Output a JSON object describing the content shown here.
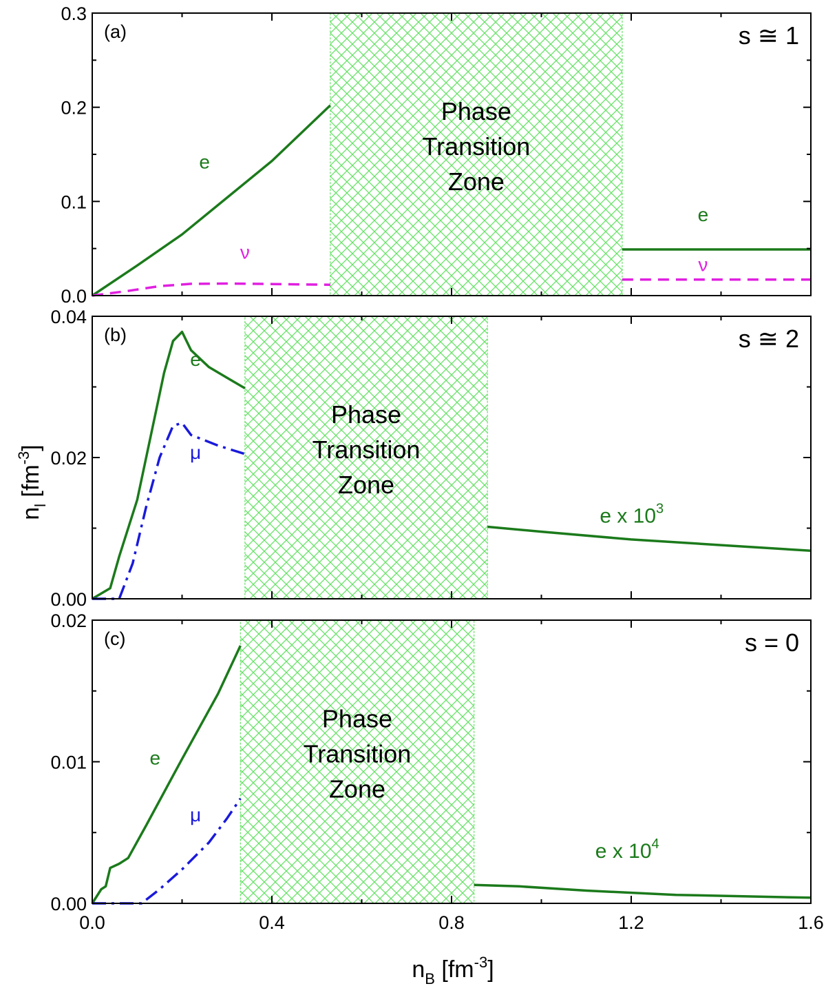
{
  "chart_data": [
    {
      "type": "line",
      "panel_label": "(a)",
      "state_label": "s ≅ 1",
      "xlim": [
        0.0,
        1.6
      ],
      "ylim": [
        0.0,
        0.3
      ],
      "yticks": [
        "0.0",
        "0.1",
        "0.2",
        "0.3"
      ],
      "phase_zone": {
        "x_range": [
          0.53,
          1.18
        ],
        "label": [
          "Phase",
          "Transition",
          "Zone"
        ]
      },
      "series": [
        {
          "name": "e",
          "style": "solid",
          "color": "#1b7a1b",
          "segments": [
            [
              [
                0.0,
                0.0
              ],
              [
                0.1,
                0.032
              ],
              [
                0.2,
                0.065
              ],
              [
                0.3,
                0.104
              ],
              [
                0.4,
                0.143
              ],
              [
                0.53,
                0.202
              ]
            ],
            [
              [
                1.18,
                0.049
              ],
              [
                1.6,
                0.049
              ]
            ]
          ]
        },
        {
          "name": "ν",
          "style": "dashed",
          "color": "#e020e0",
          "segments": [
            [
              [
                0.0,
                0.0
              ],
              [
                0.08,
                0.005
              ],
              [
                0.15,
                0.01
              ],
              [
                0.22,
                0.0125
              ],
              [
                0.3,
                0.0128
              ],
              [
                0.4,
                0.0123
              ],
              [
                0.53,
                0.0115
              ]
            ],
            [
              [
                1.18,
                0.017
              ],
              [
                1.6,
                0.017
              ]
            ]
          ]
        }
      ],
      "annotations": [
        {
          "text": "e",
          "x": 0.25,
          "y": 0.135,
          "color": "#1b7a1b"
        },
        {
          "text": "ν",
          "x": 0.34,
          "y": 0.039,
          "color": "#e020e0"
        },
        {
          "text": "e",
          "x": 1.36,
          "y": 0.079,
          "color": "#1b7a1b"
        },
        {
          "text": "ν",
          "x": 1.36,
          "y": 0.026,
          "color": "#e020e0"
        }
      ]
    },
    {
      "type": "line",
      "panel_label": "(b)",
      "state_label": "s ≅ 2",
      "xlim": [
        0.0,
        1.6
      ],
      "ylim": [
        0.0,
        0.04
      ],
      "yticks": [
        "0.00",
        "0.02",
        "0.04"
      ],
      "phase_zone": {
        "x_range": [
          0.34,
          0.88
        ],
        "label": [
          "Phase",
          "Transition",
          "Zone"
        ]
      },
      "series": [
        {
          "name": "e",
          "style": "solid",
          "color": "#1b7a1b",
          "segments": [
            [
              [
                0.0,
                0.0
              ],
              [
                0.04,
                0.0015
              ],
              [
                0.06,
                0.006
              ],
              [
                0.1,
                0.014
              ],
              [
                0.14,
                0.026
              ],
              [
                0.16,
                0.032
              ],
              [
                0.18,
                0.0365
              ],
              [
                0.2,
                0.0378
              ],
              [
                0.22,
                0.0352
              ],
              [
                0.26,
                0.0328
              ],
              [
                0.3,
                0.0313
              ],
              [
                0.34,
                0.0298
              ]
            ],
            [
              [
                0.88,
                0.0102
              ],
              [
                1.0,
                0.0095
              ],
              [
                1.2,
                0.0084
              ],
              [
                1.4,
                0.0076
              ],
              [
                1.6,
                0.0068
              ]
            ]
          ]
        },
        {
          "name": "μ",
          "style": "dashdot",
          "color": "#1a1adb",
          "segments": [
            [
              [
                0.0,
                0.0
              ],
              [
                0.06,
                0.0
              ],
              [
                0.09,
                0.005
              ],
              [
                0.12,
                0.013
              ],
              [
                0.15,
                0.02
              ],
              [
                0.18,
                0.0245
              ],
              [
                0.2,
                0.0249
              ],
              [
                0.22,
                0.0232
              ],
              [
                0.28,
                0.0217
              ],
              [
                0.34,
                0.0205
              ]
            ]
          ]
        }
      ],
      "annotations": [
        {
          "text": "e",
          "x": 0.23,
          "y": 0.033,
          "color": "#1b7a1b"
        },
        {
          "text": "μ",
          "x": 0.23,
          "y": 0.0198,
          "color": "#1a1adb"
        }
      ],
      "superscript_annotations": [
        {
          "base": "e x 10",
          "sup": "3",
          "x": 1.13,
          "y": 0.0108,
          "color": "#1b7a1b"
        }
      ]
    },
    {
      "type": "line",
      "panel_label": "(c)",
      "state_label": "s = 0",
      "xlim": [
        0.0,
        1.6
      ],
      "ylim": [
        0.0,
        0.02
      ],
      "yticks": [
        "0.00",
        "0.01",
        "0.02"
      ],
      "xticks": [
        "0.0",
        "0.4",
        "0.8",
        "1.2",
        "1.6"
      ],
      "phase_zone": {
        "x_range": [
          0.33,
          0.85
        ],
        "label": [
          "Phase",
          "Transition",
          "Zone"
        ]
      },
      "series": [
        {
          "name": "e",
          "style": "solid",
          "color": "#1b7a1b",
          "segments": [
            [
              [
                0.0,
                0.0
              ],
              [
                0.02,
                0.001
              ],
              [
                0.03,
                0.0012
              ],
              [
                0.04,
                0.0025
              ],
              [
                0.06,
                0.0028
              ],
              [
                0.08,
                0.0032
              ],
              [
                0.12,
                0.0055
              ],
              [
                0.2,
                0.0102
              ],
              [
                0.28,
                0.0148
              ],
              [
                0.33,
                0.0182
              ]
            ],
            [
              [
                0.85,
                0.0013
              ],
              [
                0.95,
                0.0012
              ],
              [
                1.1,
                0.0009
              ],
              [
                1.3,
                0.0006
              ],
              [
                1.6,
                0.0004
              ]
            ]
          ]
        },
        {
          "name": "μ",
          "style": "dashdot",
          "color": "#1a1adb",
          "segments": [
            [
              [
                0.0,
                0.0
              ],
              [
                0.11,
                0.0
              ],
              [
                0.15,
                0.001
              ],
              [
                0.2,
                0.0024
              ],
              [
                0.26,
                0.0043
              ],
              [
                0.3,
                0.006
              ],
              [
                0.33,
                0.0074
              ]
            ]
          ]
        }
      ],
      "annotations": [
        {
          "text": "e",
          "x": 0.14,
          "y": 0.0098,
          "color": "#1b7a1b"
        },
        {
          "text": "μ",
          "x": 0.23,
          "y": 0.0058,
          "color": "#1a1adb"
        }
      ],
      "superscript_annotations": [
        {
          "base": "e x 10",
          "sup": "4",
          "x": 1.12,
          "y": 0.0032,
          "color": "#1b7a1b"
        }
      ]
    }
  ],
  "axes": {
    "ylabel_base": "n",
    "ylabel_sub": "l",
    "ylabel_unit": " [fm",
    "ylabel_exp": "-3",
    "ylabel_close": "]",
    "xlabel_base": "n",
    "xlabel_sub": "B",
    "xlabel_unit": " [fm",
    "xlabel_exp": "-3",
    "xlabel_close": "]"
  },
  "colors": {
    "zone_hatch": "#66e266",
    "axis": "#000000"
  }
}
